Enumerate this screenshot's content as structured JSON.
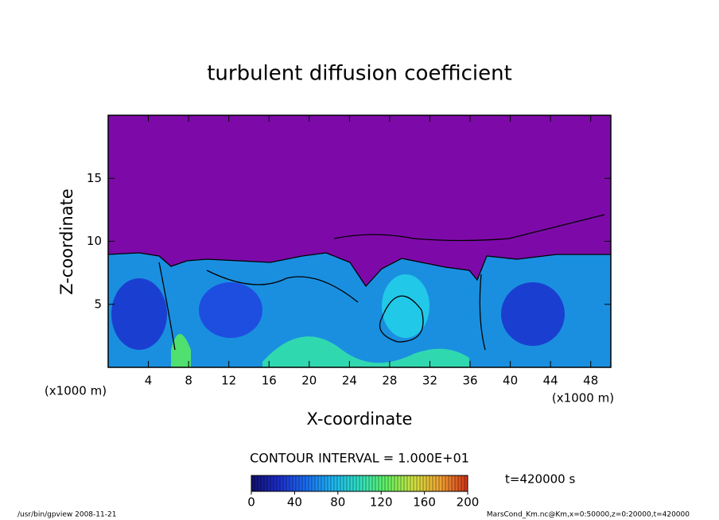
{
  "chart_data": {
    "type": "contour",
    "title": "turbulent diffusion coefficient",
    "xlabel": "X-coordinate",
    "ylabel": "Z-coordinate",
    "x_unit_label": "(x1000 m)",
    "y_unit_label": "(x1000 m)",
    "xlim": [
      0,
      50
    ],
    "xticks": [
      4,
      8,
      12,
      16,
      20,
      24,
      28,
      32,
      36,
      40,
      44,
      48
    ],
    "ylim": [
      0,
      20
    ],
    "yticks": [
      5,
      10,
      15
    ],
    "background_color": "#7d0aa8",
    "contour_interval_label": "CONTOUR INTERVAL = 1.000E+01",
    "time_label": "t=420000 s",
    "clim": [
      0,
      200
    ],
    "cticks": [
      0,
      40,
      80,
      120,
      160,
      200
    ],
    "colormap": [
      "#10106a",
      "#1c2cc8",
      "#1a6cf0",
      "#1cb4f0",
      "#30e0c0",
      "#60f060",
      "#d0e040",
      "#f0a030",
      "#d03018"
    ],
    "footer_left": "/usr/bin/gpview   2008-11-21",
    "footer_right": "MarsCond_Km.nc@Km,x=0:50000,z=0:20000,t=420000"
  }
}
